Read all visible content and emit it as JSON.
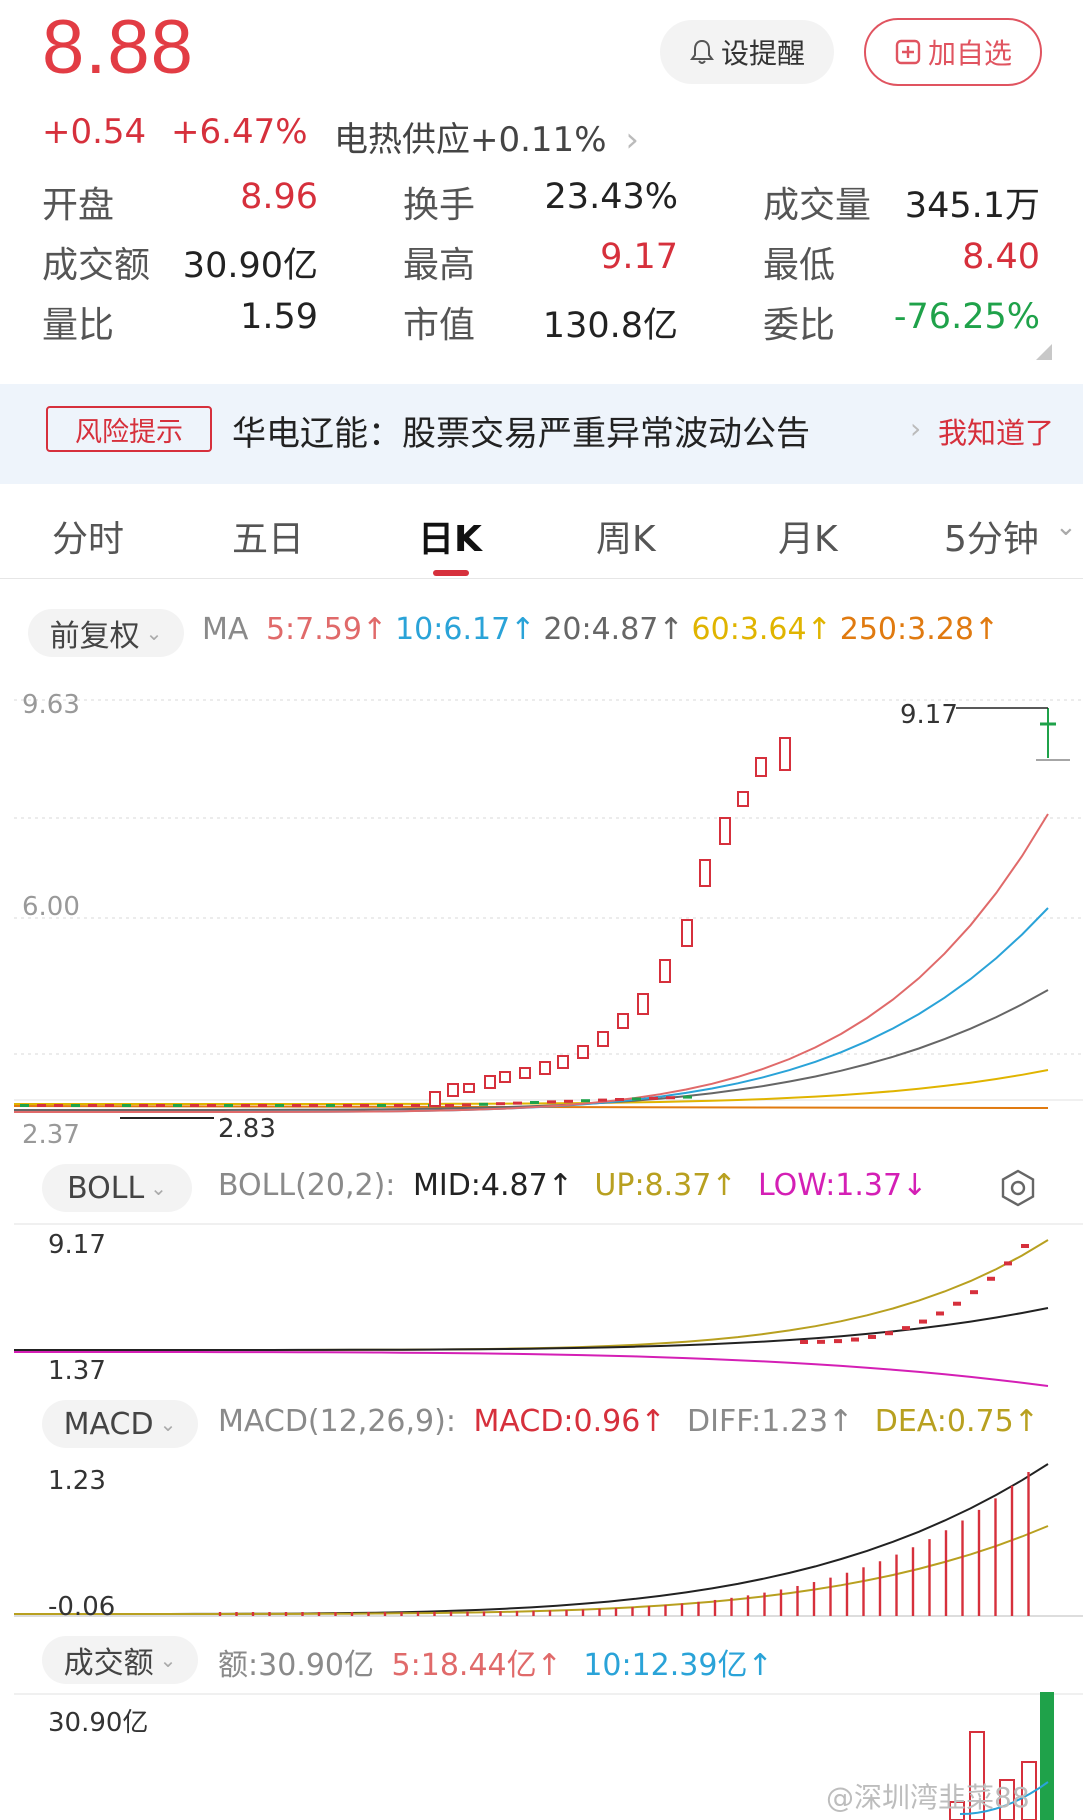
{
  "header": {
    "price": "8.88",
    "change": "+0.54",
    "change_pct": "+6.47%",
    "sector": "电热供应+0.11%",
    "remind_label": "设提醒",
    "watch_label": "加自选"
  },
  "stats": [
    {
      "label": "开盘",
      "value": "8.96",
      "color": "#d6303c"
    },
    {
      "label": "换手",
      "value": "23.43%",
      "color": "#222222"
    },
    {
      "label": "成交量",
      "value": "345.1万",
      "color": "#222222"
    },
    {
      "label": "成交额",
      "value": "30.90亿",
      "color": "#222222"
    },
    {
      "label": "最高",
      "value": "9.17",
      "color": "#d6303c"
    },
    {
      "label": "最低",
      "value": "8.40",
      "color": "#d6303c"
    },
    {
      "label": "量比",
      "value": "1.59",
      "color": "#222222"
    },
    {
      "label": "市值",
      "value": "130.8亿",
      "color": "#222222"
    },
    {
      "label": "委比",
      "value": "-76.25%",
      "color": "#1fa24a"
    }
  ],
  "risk": {
    "tag": "风险提示",
    "text": "华电辽能：股票交易严重异常波动公告",
    "ack": "我知道了"
  },
  "tabs": [
    "分时",
    "五日",
    "日K",
    "周K",
    "月K",
    "5分钟"
  ],
  "active_tab": "日K",
  "kline": {
    "adjust_label": "前复权",
    "ma_prefix": "MA",
    "ma": [
      {
        "text": "5:7.59↑",
        "color": "#e06a6a"
      },
      {
        "text": "10:6.17↑",
        "color": "#2aa3d8"
      },
      {
        "text": "20:4.87↑",
        "color": "#666666"
      },
      {
        "text": "60:3.64↑",
        "color": "#e0b400"
      },
      {
        "text": "250:3.28↑",
        "color": "#e07a10"
      }
    ],
    "y_top": "9.63",
    "y_mid": "6.00",
    "y_bottom": "2.37",
    "high_marker": "9.17",
    "low_marker": "2.83"
  },
  "boll": {
    "label": "BOLL",
    "params": "BOLL(20,2):",
    "mid": "MID:4.87↑",
    "up": "UP:8.37↑",
    "low": "LOW:1.37↓",
    "y_top": "9.17",
    "y_bottom": "1.37"
  },
  "macd": {
    "label": "MACD",
    "params": "MACD(12,26,9):",
    "macd": "MACD:0.96↑",
    "diff": "DIFF:1.23↑",
    "dea": "DEA:0.75↑",
    "y_top": "1.23",
    "y_bottom": "-0.06"
  },
  "volume": {
    "label": "成交额",
    "amount": "额:30.90亿",
    "ma5": "5:18.44亿↑",
    "ma10": "10:12.39亿↑",
    "y_top": "30.90亿"
  },
  "watermark": "@深圳湾韭菜88",
  "colors": {
    "up": "#d6303c",
    "down": "#1fa24a",
    "accent": "#e23c44"
  }
}
